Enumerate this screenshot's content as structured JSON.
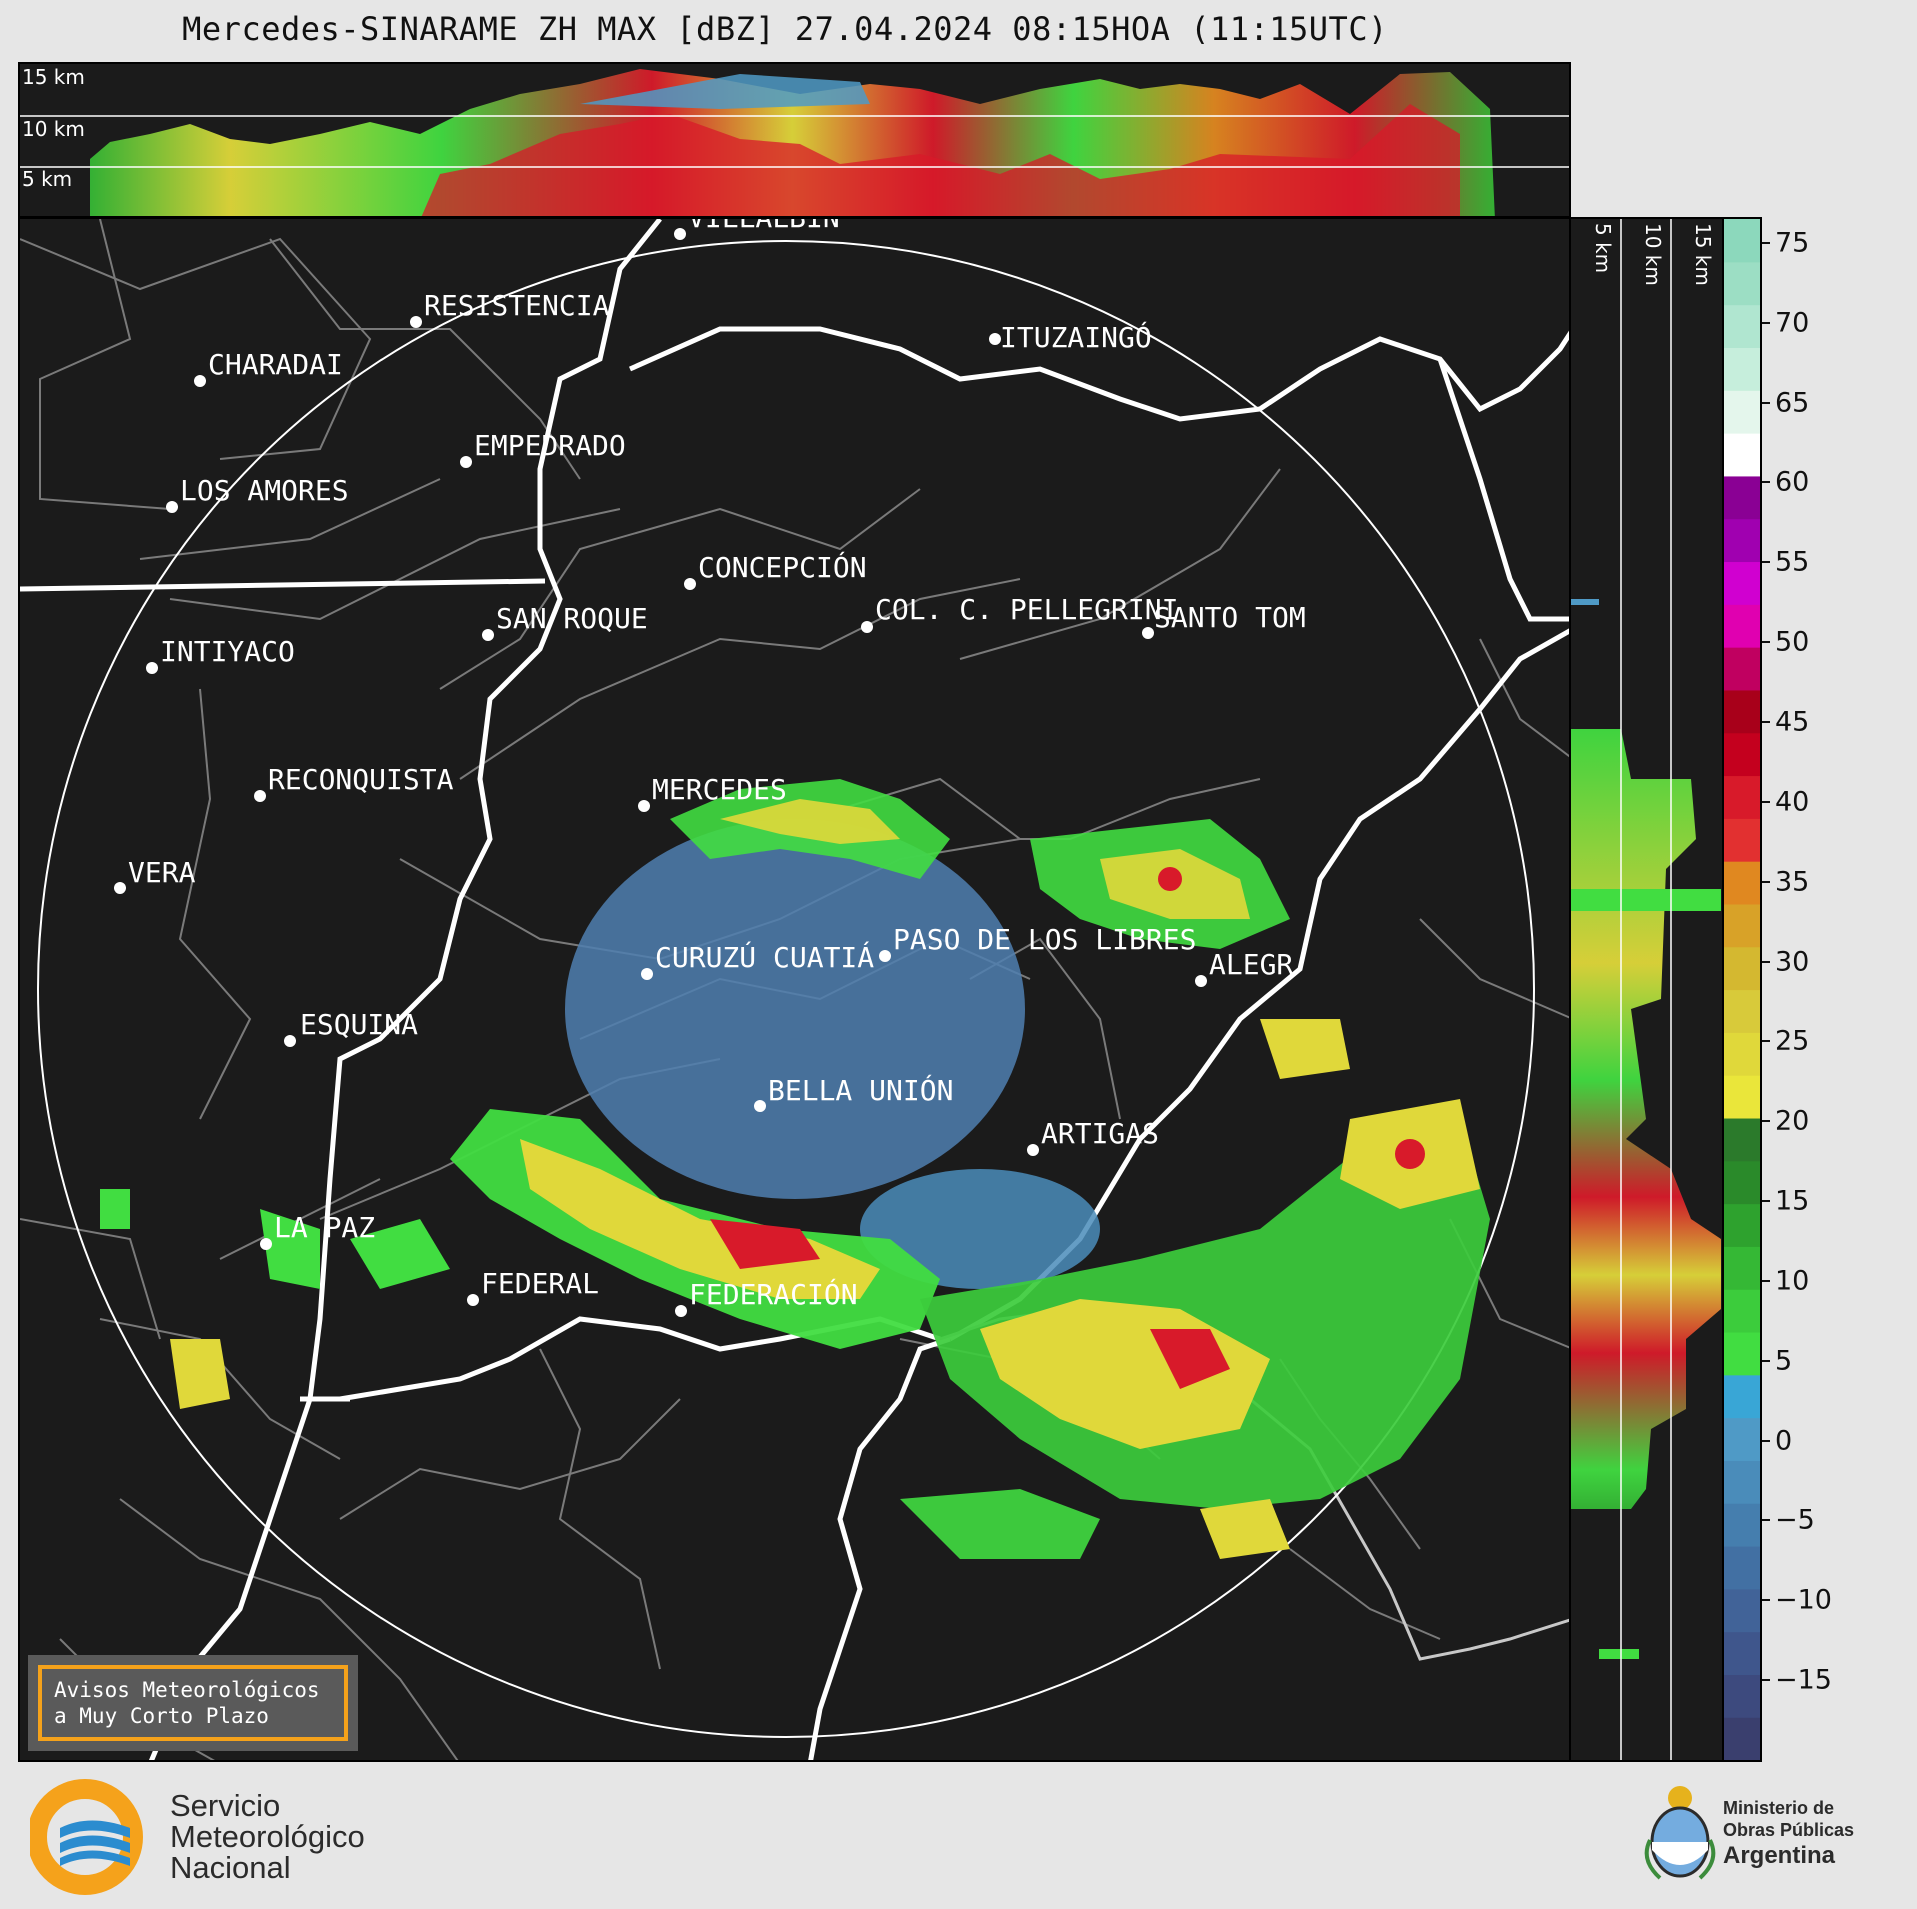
{
  "title": "Mercedes-SINARAME ZH MAX [dBZ] 27.04.2024 08:15HOA (11:15UTC)",
  "top_panel": {
    "heights": [
      "15 km",
      "10 km",
      "5 km"
    ]
  },
  "side_panel": {
    "heights": [
      "5 km",
      "10 km",
      "15 km"
    ]
  },
  "cities": [
    {
      "name": "VILLALBÍN"
    },
    {
      "name": "RESISTENCIA"
    },
    {
      "name": "CHARADAI"
    },
    {
      "name": "ITUZAINGÓ"
    },
    {
      "name": "EMPEDRADO"
    },
    {
      "name": "LOS AMORES"
    },
    {
      "name": "CONCEPCIÓN"
    },
    {
      "name": "COL. C. PELLEGRINI"
    },
    {
      "name": "SANTO TOM"
    },
    {
      "name": "SAN ROQUE"
    },
    {
      "name": "INTIYACO"
    },
    {
      "name": "MERCEDES"
    },
    {
      "name": "RECONQUISTA"
    },
    {
      "name": "VERA"
    },
    {
      "name": "CURUZÚ CUATIÁ"
    },
    {
      "name": "PASO DE LOS LIBRES"
    },
    {
      "name": "ALEGR"
    },
    {
      "name": "ESQUINA"
    },
    {
      "name": "BELLA UNIÓN"
    },
    {
      "name": "ARTIGAS"
    },
    {
      "name": "LA PAZ"
    },
    {
      "name": "FEDERAL"
    },
    {
      "name": "FEDERACIÓN"
    }
  ],
  "colorbar": {
    "ticks": [
      "75",
      "70",
      "65",
      "60",
      "55",
      "50",
      "45",
      "40",
      "35",
      "30",
      "25",
      "20",
      "15",
      "10",
      "5",
      "0",
      "−5",
      "−10",
      "−15"
    ],
    "tick_values": [
      75,
      70,
      65,
      60,
      55,
      50,
      45,
      40,
      35,
      30,
      25,
      20,
      15,
      10,
      5,
      0,
      -5,
      -10,
      -15
    ],
    "range": [
      -20,
      76.5
    ],
    "colors": [
      "#3a3f6e",
      "#3d4a7e",
      "#3f568c",
      "#416398",
      "#4270a3",
      "#457eae",
      "#4a8cba",
      "#4f9ac6",
      "#39a6d6",
      "#41dd41",
      "#3ccc3c",
      "#35b835",
      "#2ea22e",
      "#2a8a2a",
      "#2b7a2b",
      "#eae63a",
      "#e0d83a",
      "#d8ca3a",
      "#d4b830",
      "#d8a228",
      "#e08820",
      "#e23030",
      "#d81a2a",
      "#c4001e",
      "#a8001a",
      "#c00060",
      "#e000b0",
      "#d000d0",
      "#a000b0",
      "#8a0094",
      "#ffffff",
      "#e4f6ec",
      "#c6eedc",
      "#b0e6d0",
      "#9cdec4",
      "#8cd8bc"
    ]
  },
  "alert": {
    "line1": "Avisos Meteorológicos",
    "line2": "a Muy Corto Plazo"
  },
  "footer": {
    "smn_line1": "Servicio",
    "smn_line2": "Meteorológico",
    "smn_line3": "Nacional",
    "ministry_line1": "Ministerio de",
    "ministry_line2": "Obras Públicas",
    "ministry_line3": "Argentina"
  }
}
